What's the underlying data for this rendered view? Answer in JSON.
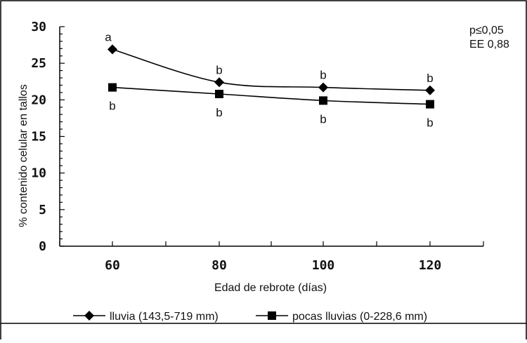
{
  "chart_data": {
    "type": "line",
    "title": "",
    "xlabel": "Edad de rebrote (días)",
    "ylabel": "% contenido celular en tallos",
    "categories": [
      "60",
      "80",
      "100",
      "120"
    ],
    "y_ticks": [
      "0",
      "5",
      "10",
      "15",
      "20",
      "25",
      "30"
    ],
    "ylim": [
      0,
      30
    ],
    "grid": false,
    "legend_position": "bottom",
    "series": [
      {
        "name": "lluvia (143,5-719 mm)",
        "marker": "diamond",
        "values": [
          26.9,
          22.4,
          21.7,
          21.3
        ],
        "labels": [
          "a",
          "b",
          "b",
          "b"
        ],
        "label_side": "above"
      },
      {
        "name": "pocas lluvias (0-228,6 mm)",
        "marker": "square",
        "values": [
          21.7,
          20.8,
          19.9,
          19.4
        ],
        "labels": [
          "b",
          "b",
          "b",
          "b"
        ],
        "label_side": "below"
      }
    ],
    "annotations": [
      "p≤0,05",
      "EE 0,88"
    ],
    "colors": {
      "line": "#000000",
      "background": "#ffffff"
    }
  }
}
